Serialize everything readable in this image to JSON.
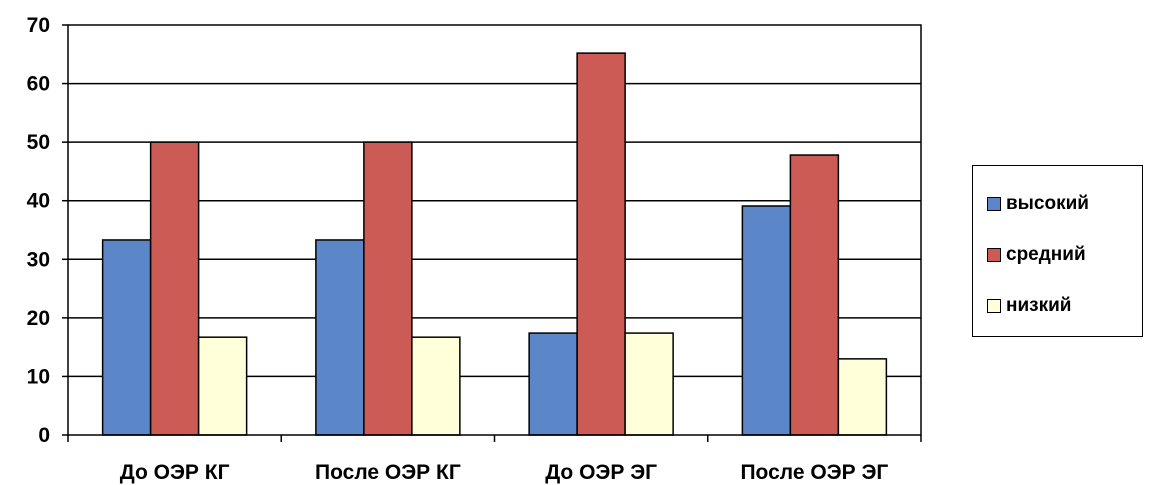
{
  "chart_data": {
    "type": "bar",
    "categories": [
      "До ОЭР КГ",
      "После ОЭР КГ",
      "До ОЭР ЭГ",
      "После ОЭР ЭГ"
    ],
    "series": [
      {
        "name": "высокий",
        "color": "#5B87C8",
        "values": [
          33.3,
          33.3,
          17.4,
          39.1
        ]
      },
      {
        "name": "средний",
        "color": "#CC5A55",
        "values": [
          50.0,
          50.0,
          65.2,
          47.8
        ]
      },
      {
        "name": "низкий",
        "color": "#FFFFD9",
        "values": [
          16.7,
          16.7,
          17.4,
          13.0
        ]
      }
    ],
    "ylim": [
      0,
      70
    ],
    "yticks": [
      "0",
      "10",
      "20",
      "30",
      "40",
      "50",
      "60",
      "70"
    ],
    "grid": true,
    "legend_position": "right"
  }
}
